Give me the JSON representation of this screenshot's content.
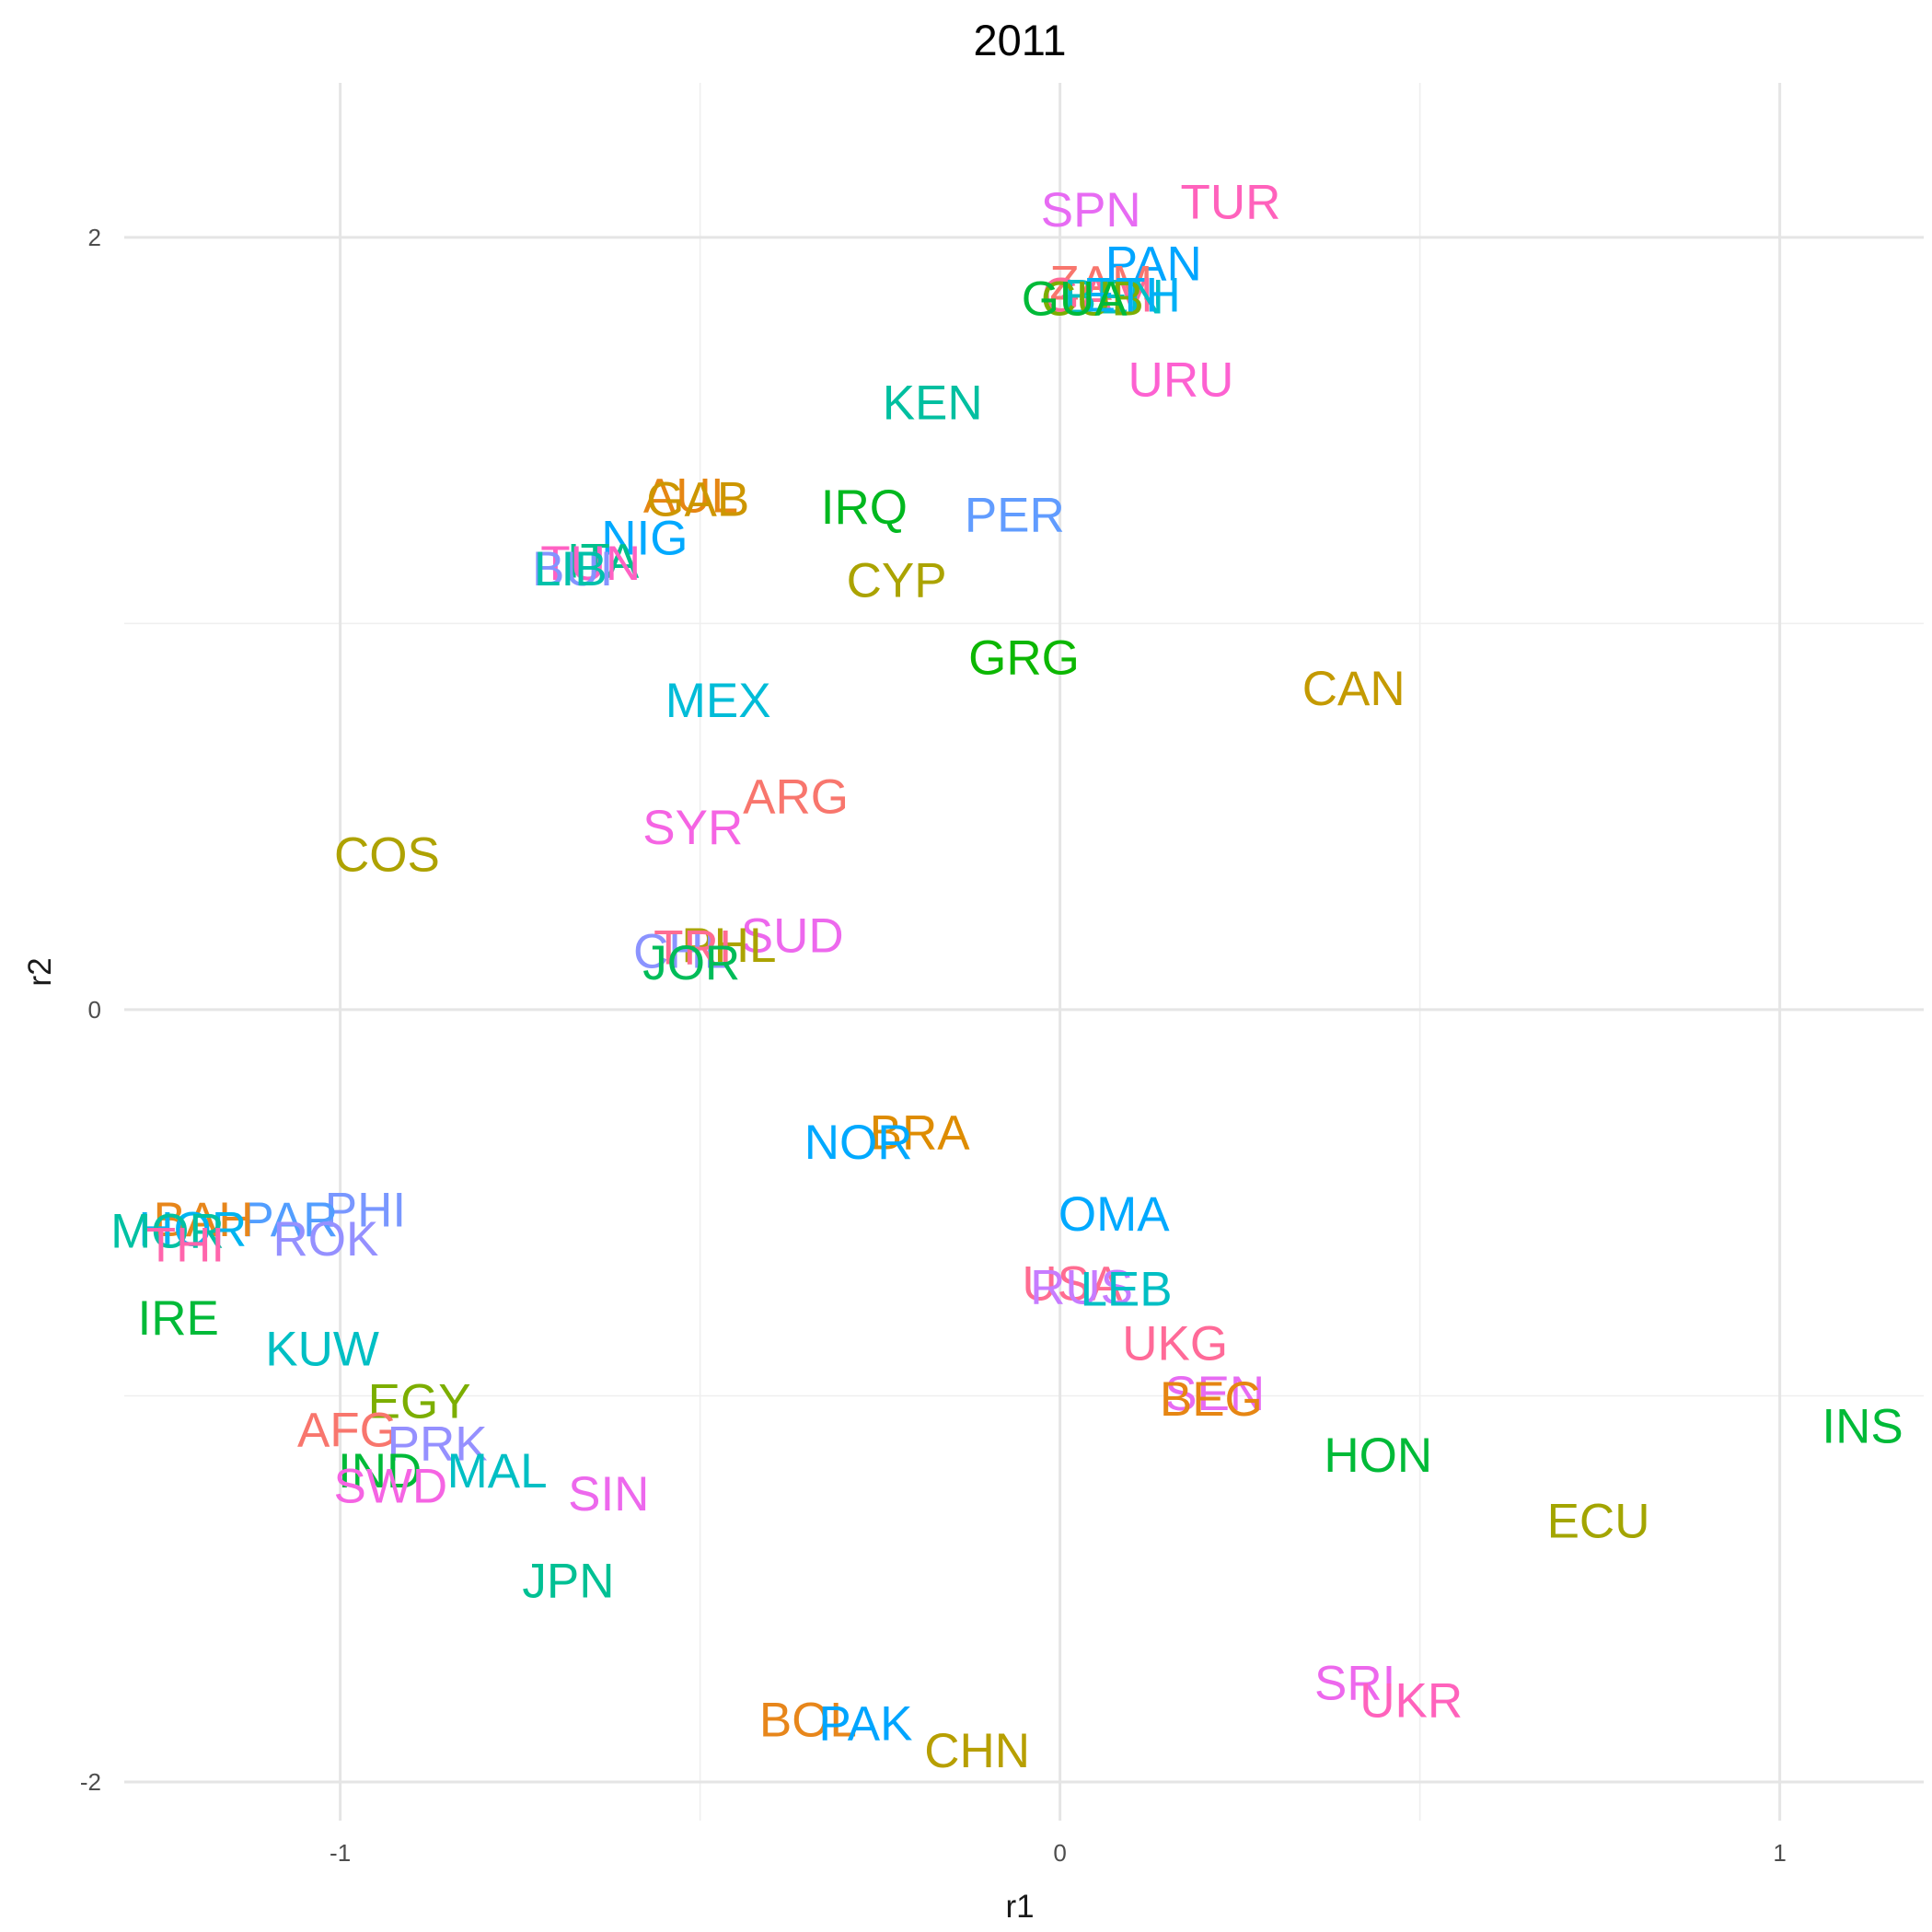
{
  "chart_data": {
    "type": "scatter",
    "title": "2011",
    "xlabel": "r1",
    "ylabel": "r2",
    "xlim": [
      -1.3,
      1.2
    ],
    "ylim": [
      -2.1,
      2.4
    ],
    "xticks": [
      -1,
      0,
      1
    ],
    "xtick_labels": [
      "-1",
      "0",
      "1"
    ],
    "yticks": [
      -2,
      0,
      2
    ],
    "ytick_labels": [
      "-2",
      "0",
      "2"
    ],
    "grid": true,
    "legend": "none",
    "points": [
      {
        "label": "SPN",
        "x": 0.043,
        "y": 2.07,
        "color": "#E76BF3"
      },
      {
        "label": "TUR",
        "x": 0.237,
        "y": 2.09,
        "color": "#FF62BC"
      },
      {
        "label": "PAN",
        "x": 0.13,
        "y": 1.93,
        "color": "#00A5FF"
      },
      {
        "label": "ZAM",
        "x": 0.057,
        "y": 1.88,
        "color": "#F8766D"
      },
      {
        "label": "GAM",
        "x": 0.052,
        "y": 1.85,
        "color": "#FF6A98"
      },
      {
        "label": "BEN",
        "x": 0.075,
        "y": 1.845,
        "color": "#00BFC4"
      },
      {
        "label": "CUB",
        "x": 0.045,
        "y": 1.84,
        "color": "#7CAE00"
      },
      {
        "label": "ETH",
        "x": 0.1,
        "y": 1.85,
        "color": "#00B0F6"
      },
      {
        "label": "GUA",
        "x": 0.02,
        "y": 1.84,
        "color": "#00BA38"
      },
      {
        "label": "URU",
        "x": 0.168,
        "y": 1.63,
        "color": "#FD61D1"
      },
      {
        "label": "KEN",
        "x": -0.177,
        "y": 1.57,
        "color": "#00BFA0"
      },
      {
        "label": "AUL",
        "x": -0.513,
        "y": 1.33,
        "color": "#E68613"
      },
      {
        "label": "GAB",
        "x": -0.503,
        "y": 1.32,
        "color": "#CD9600"
      },
      {
        "label": "IRQ",
        "x": -0.272,
        "y": 1.3,
        "color": "#00B81F"
      },
      {
        "label": "PER",
        "x": -0.063,
        "y": 1.28,
        "color": "#619CFF"
      },
      {
        "label": "NIG",
        "x": -0.577,
        "y": 1.22,
        "color": "#00A9FF"
      },
      {
        "label": "ITA",
        "x": -0.635,
        "y": 1.16,
        "color": "#00C08B"
      },
      {
        "label": "TUN",
        "x": -0.652,
        "y": 1.155,
        "color": "#FF61C3"
      },
      {
        "label": "BUI",
        "x": -0.677,
        "y": 1.14,
        "color": "#8494FF"
      },
      {
        "label": "LIB",
        "x": -0.68,
        "y": 1.14,
        "color": "#00C1AA"
      },
      {
        "label": "CYP",
        "x": -0.227,
        "y": 1.11,
        "color": "#ABA300"
      },
      {
        "label": "GRG",
        "x": -0.05,
        "y": 0.91,
        "color": "#0CB702"
      },
      {
        "label": "CAN",
        "x": 0.408,
        "y": 0.83,
        "color": "#C49A00"
      },
      {
        "label": "MEX",
        "x": -0.475,
        "y": 0.8,
        "color": "#00BCD8"
      },
      {
        "label": "ARG",
        "x": -0.367,
        "y": 0.55,
        "color": "#F8766D"
      },
      {
        "label": "SYR",
        "x": -0.51,
        "y": 0.47,
        "color": "#F564E3"
      },
      {
        "label": "COS",
        "x": -0.935,
        "y": 0.4,
        "color": "#AEA200"
      },
      {
        "label": "SUD",
        "x": -0.372,
        "y": 0.19,
        "color": "#ED68ED"
      },
      {
        "label": "PHL",
        "x": -0.46,
        "y": 0.165,
        "color": "#ABA300"
      },
      {
        "label": "CHL",
        "x": -0.525,
        "y": 0.15,
        "color": "#8B93FF"
      },
      {
        "label": "TRI",
        "x": -0.51,
        "y": 0.16,
        "color": "#FF6C91"
      },
      {
        "label": "JOR",
        "x": -0.512,
        "y": 0.12,
        "color": "#00BC59"
      },
      {
        "label": "BRA",
        "x": -0.195,
        "y": -0.32,
        "color": "#DE8C00"
      },
      {
        "label": "NOR",
        "x": -0.28,
        "y": -0.345,
        "color": "#00A9FF"
      },
      {
        "label": "PHI",
        "x": -0.965,
        "y": -0.52,
        "color": "#7997FF"
      },
      {
        "label": "PAR",
        "x": -1.07,
        "y": -0.545,
        "color": "#529EFF"
      },
      {
        "label": "BAH",
        "x": -1.19,
        "y": -0.545,
        "color": "#E7861B"
      },
      {
        "label": "HOR",
        "x": -1.205,
        "y": -0.57,
        "color": "#00B4F0"
      },
      {
        "label": "MOR",
        "x": -1.24,
        "y": -0.575,
        "color": "#00C1A3"
      },
      {
        "label": "THI",
        "x": -1.215,
        "y": -0.61,
        "color": "#FF65AC"
      },
      {
        "label": "ROK",
        "x": -1.02,
        "y": -0.595,
        "color": "#9590FF"
      },
      {
        "label": "OMA",
        "x": 0.075,
        "y": -0.53,
        "color": "#00A9FF"
      },
      {
        "label": "USA",
        "x": 0.017,
        "y": -0.71,
        "color": "#FF6C91"
      },
      {
        "label": "RUS",
        "x": 0.03,
        "y": -0.72,
        "color": "#C77CFF"
      },
      {
        "label": "LEB",
        "x": 0.092,
        "y": -0.725,
        "color": "#00BFC4"
      },
      {
        "label": "IRE",
        "x": -1.225,
        "y": -0.8,
        "color": "#00BA38"
      },
      {
        "label": "KUW",
        "x": -1.025,
        "y": -0.88,
        "color": "#00BFC4"
      },
      {
        "label": "UKG",
        "x": 0.16,
        "y": -0.865,
        "color": "#FF6A98"
      },
      {
        "label": "EGY",
        "x": -0.89,
        "y": -1.015,
        "color": "#7CAE00"
      },
      {
        "label": "SEN",
        "x": 0.215,
        "y": -0.995,
        "color": "#E76BF3"
      },
      {
        "label": "BEG",
        "x": 0.21,
        "y": -1.01,
        "color": "#E68613"
      },
      {
        "label": "AFG",
        "x": -0.99,
        "y": -1.09,
        "color": "#F8766D"
      },
      {
        "label": "PRK",
        "x": -0.865,
        "y": -1.125,
        "color": "#9590FF"
      },
      {
        "label": "HON",
        "x": 0.442,
        "y": -1.155,
        "color": "#00BA38"
      },
      {
        "label": "INS",
        "x": 1.115,
        "y": -1.08,
        "color": "#00BA38"
      },
      {
        "label": "IND",
        "x": -0.945,
        "y": -1.195,
        "color": "#00BA38"
      },
      {
        "label": "MAL",
        "x": -0.782,
        "y": -1.195,
        "color": "#00BFC4"
      },
      {
        "label": "SWD",
        "x": -0.93,
        "y": -1.235,
        "color": "#F564E3"
      },
      {
        "label": "SIN",
        "x": -0.627,
        "y": -1.255,
        "color": "#ED68ED"
      },
      {
        "label": "ECU",
        "x": 0.748,
        "y": -1.325,
        "color": "#A3A500"
      },
      {
        "label": "JPN",
        "x": -0.683,
        "y": -1.48,
        "color": "#00C094"
      },
      {
        "label": "SRI",
        "x": 0.41,
        "y": -1.745,
        "color": "#ED68ED"
      },
      {
        "label": "UKR",
        "x": 0.488,
        "y": -1.79,
        "color": "#FF62BC"
      },
      {
        "label": "BOL",
        "x": -0.35,
        "y": -1.84,
        "color": "#E7861B"
      },
      {
        "label": "PAK",
        "x": -0.27,
        "y": -1.85,
        "color": "#00A5FF"
      },
      {
        "label": "CHN",
        "x": -0.115,
        "y": -1.92,
        "color": "#B79F00"
      }
    ]
  }
}
